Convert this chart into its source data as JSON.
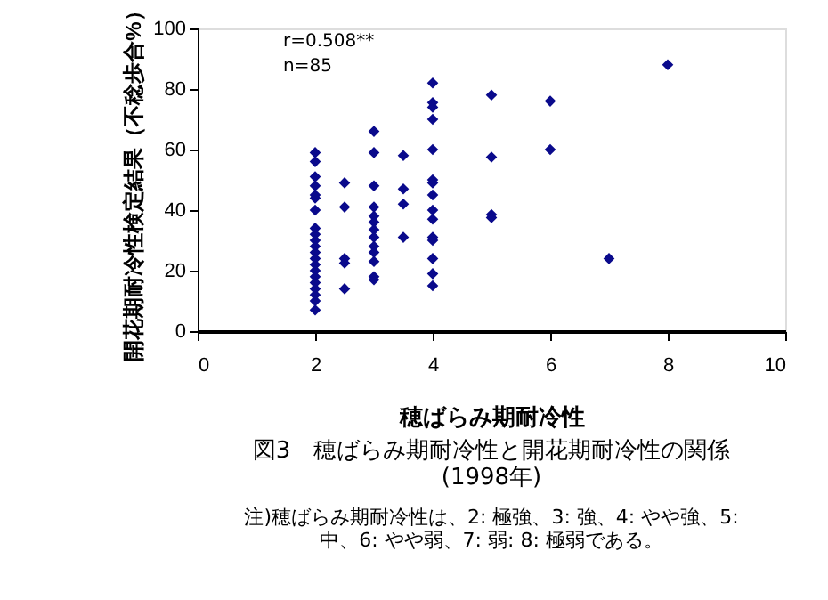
{
  "chart_data": {
    "type": "scatter",
    "title": "図3　穂ばらみ期耐冷性と開花期耐冷性の関係(1998年)",
    "xlabel": "穂ばらみ期耐冷性",
    "ylabel": "開花期耐冷性検定結果（不稔歩合%）",
    "annotations": [
      "r=0.508**",
      "n=85",
      "注)穂ばらみ期耐冷性は、2: 極強、3: 強、4: やや強、5: 中、6: やや弱、7: 弱: 8: 極弱である。"
    ],
    "series": [
      {
        "color": "#0a0a8c",
        "x": [
          2,
          2,
          2,
          2,
          2,
          2,
          2,
          2,
          2,
          2,
          2,
          2,
          2,
          2,
          2,
          2,
          2,
          2,
          2,
          2,
          2,
          2.5,
          2.5,
          2.5,
          2.5,
          2.5,
          3,
          3,
          3,
          3,
          3,
          3,
          3,
          3,
          3,
          3,
          3,
          3,
          3,
          3.5,
          3.5,
          3.5,
          3.5,
          4,
          4,
          4,
          4,
          4,
          4,
          4,
          4,
          4,
          4,
          4,
          4,
          4,
          4,
          4,
          5,
          5,
          5,
          5,
          6,
          6,
          7,
          8
        ],
        "values": [
          59,
          56,
          51,
          48,
          45,
          44,
          40,
          34,
          32,
          30,
          28,
          26,
          24,
          22,
          20,
          18,
          16,
          14,
          12,
          10,
          7,
          49,
          41,
          24,
          22.5,
          14,
          66,
          59,
          48,
          41,
          38,
          36,
          33.5,
          31,
          28,
          26,
          23,
          18,
          17,
          58,
          47,
          42,
          31,
          82,
          75.5,
          74,
          70,
          60,
          50,
          49,
          45,
          40,
          37,
          31,
          30,
          24,
          19,
          15,
          78,
          57.5,
          38.5,
          37.5,
          76,
          60,
          24,
          88
        ]
      }
    ],
    "xlim": [
      0,
      10
    ],
    "xticks": [
      0,
      2,
      4,
      6,
      8,
      10
    ],
    "ylim": [
      0,
      100
    ],
    "yticks": [
      0,
      20,
      40,
      60,
      80,
      100
    ],
    "grid": false,
    "marker": "diamond"
  }
}
